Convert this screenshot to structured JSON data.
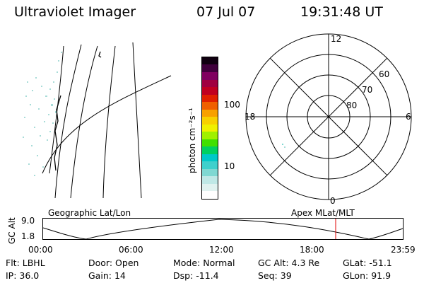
{
  "header": {
    "instrument": "Ultraviolet Imager",
    "date": "07 Jul 07",
    "time": "19:31:48 UT"
  },
  "geo_panel": {
    "label": "Geographic Lat/Lon"
  },
  "apex_panel": {
    "label": "Apex MLat/MLT",
    "mlt_labels": {
      "top": "12",
      "left": "18",
      "right": "6",
      "bottom": "0"
    },
    "lat_labels": [
      "60",
      "70",
      "80"
    ]
  },
  "colorbar": {
    "unit_label": "photon cm⁻²s⁻¹",
    "ticks": [
      "100",
      "10"
    ],
    "colors": [
      "#ffffff",
      "#e0f2f0",
      "#bfe8e6",
      "#7fd8d2",
      "#3fd0cc",
      "#00c8c8",
      "#00d060",
      "#40e000",
      "#a0f000",
      "#f0f000",
      "#f8d000",
      "#f8a000",
      "#f06000",
      "#e02000",
      "#c00020",
      "#a00040",
      "#800060",
      "#40003c",
      "#100010"
    ]
  },
  "timeline": {
    "axis_label": "GC Alt",
    "y_ticks": [
      "9.0",
      "1.8"
    ],
    "x_ticks": [
      "00:00",
      "06:00",
      "12:00",
      "18:00",
      "23:59"
    ],
    "marker_color": "#e00000"
  },
  "footer": {
    "row1": [
      {
        "key": "Flt:",
        "value": "LBHL"
      },
      {
        "key": "Door:",
        "value": "Open"
      },
      {
        "key": "Mode:",
        "value": "Normal"
      },
      {
        "key": "GC Alt:",
        "value": "4.3 Re"
      },
      {
        "key": "GLat:",
        "value": "-51.1"
      }
    ],
    "row2": [
      {
        "key": "IP:",
        "value": "36.0"
      },
      {
        "key": "Gain:",
        "value": "14"
      },
      {
        "key": "Dsp:",
        "value": "-11.4"
      },
      {
        "key": "Seq:",
        "value": "39"
      },
      {
        "key": "GLon:",
        "value": "91.9"
      }
    ]
  }
}
